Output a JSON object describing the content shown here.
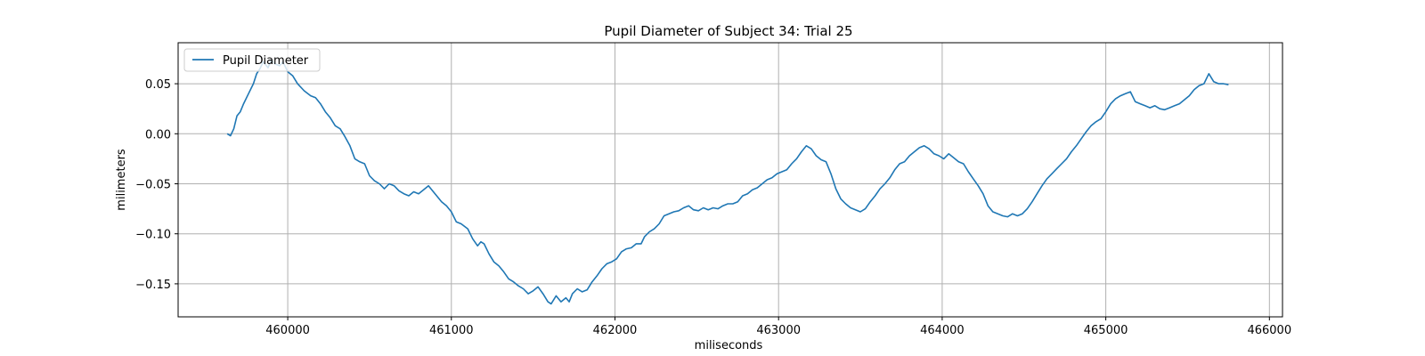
{
  "chart_data": {
    "type": "line",
    "title": "Pupil Diameter of Subject 34: Trial 25",
    "xlabel": "miliseconds",
    "ylabel": "milimeters",
    "xlim": [
      459330,
      466080
    ],
    "ylim": [
      -0.183,
      0.091
    ],
    "xticks": [
      460000,
      461000,
      462000,
      463000,
      464000,
      465000,
      466000
    ],
    "yticks": [
      0.05,
      0.0,
      -0.05,
      -0.1,
      -0.15
    ],
    "ytick_labels": [
      "0.05",
      "0.00",
      "−0.05",
      "−0.10",
      "−0.15"
    ],
    "grid": true,
    "legend_position": "top-left",
    "series": [
      {
        "name": "Pupil Diameter",
        "color": "#1f77b4",
        "points": [
          [
            459630,
            0.0
          ],
          [
            459650,
            -0.002
          ],
          [
            459670,
            0.005
          ],
          [
            459690,
            0.018
          ],
          [
            459710,
            0.022
          ],
          [
            459730,
            0.03
          ],
          [
            459760,
            0.04
          ],
          [
            459790,
            0.05
          ],
          [
            459810,
            0.06
          ],
          [
            459830,
            0.065
          ],
          [
            459850,
            0.072
          ],
          [
            459880,
            0.066
          ],
          [
            459900,
            0.074
          ],
          [
            459920,
            0.07
          ],
          [
            459950,
            0.068
          ],
          [
            459970,
            0.072
          ],
          [
            460000,
            0.062
          ],
          [
            460030,
            0.058
          ],
          [
            460060,
            0.05
          ],
          [
            460100,
            0.043
          ],
          [
            460140,
            0.038
          ],
          [
            460170,
            0.036
          ],
          [
            460200,
            0.03
          ],
          [
            460230,
            0.022
          ],
          [
            460260,
            0.016
          ],
          [
            460290,
            0.008
          ],
          [
            460320,
            0.005
          ],
          [
            460350,
            -0.003
          ],
          [
            460380,
            -0.012
          ],
          [
            460410,
            -0.025
          ],
          [
            460440,
            -0.028
          ],
          [
            460470,
            -0.03
          ],
          [
            460500,
            -0.042
          ],
          [
            460530,
            -0.047
          ],
          [
            460560,
            -0.05
          ],
          [
            460590,
            -0.055
          ],
          [
            460620,
            -0.05
          ],
          [
            460650,
            -0.052
          ],
          [
            460680,
            -0.057
          ],
          [
            460710,
            -0.06
          ],
          [
            460740,
            -0.062
          ],
          [
            460770,
            -0.058
          ],
          [
            460800,
            -0.06
          ],
          [
            460830,
            -0.056
          ],
          [
            460860,
            -0.052
          ],
          [
            460890,
            -0.058
          ],
          [
            460910,
            -0.062
          ],
          [
            460940,
            -0.068
          ],
          [
            460970,
            -0.072
          ],
          [
            461000,
            -0.078
          ],
          [
            461030,
            -0.088
          ],
          [
            461060,
            -0.09
          ],
          [
            461100,
            -0.095
          ],
          [
            461130,
            -0.105
          ],
          [
            461160,
            -0.112
          ],
          [
            461180,
            -0.108
          ],
          [
            461200,
            -0.11
          ],
          [
            461230,
            -0.12
          ],
          [
            461260,
            -0.128
          ],
          [
            461290,
            -0.132
          ],
          [
            461320,
            -0.138
          ],
          [
            461350,
            -0.145
          ],
          [
            461380,
            -0.148
          ],
          [
            461410,
            -0.152
          ],
          [
            461440,
            -0.155
          ],
          [
            461470,
            -0.16
          ],
          [
            461500,
            -0.157
          ],
          [
            461530,
            -0.153
          ],
          [
            461560,
            -0.16
          ],
          [
            461590,
            -0.168
          ],
          [
            461610,
            -0.17
          ],
          [
            461640,
            -0.162
          ],
          [
            461670,
            -0.168
          ],
          [
            461700,
            -0.164
          ],
          [
            461720,
            -0.168
          ],
          [
            461740,
            -0.16
          ],
          [
            461770,
            -0.155
          ],
          [
            461800,
            -0.158
          ],
          [
            461830,
            -0.156
          ],
          [
            461860,
            -0.148
          ],
          [
            461890,
            -0.142
          ],
          [
            461920,
            -0.135
          ],
          [
            461950,
            -0.13
          ],
          [
            461980,
            -0.128
          ],
          [
            462010,
            -0.125
          ],
          [
            462040,
            -0.118
          ],
          [
            462070,
            -0.115
          ],
          [
            462100,
            -0.114
          ],
          [
            462130,
            -0.11
          ],
          [
            462160,
            -0.11
          ],
          [
            462180,
            -0.103
          ],
          [
            462210,
            -0.098
          ],
          [
            462240,
            -0.095
          ],
          [
            462270,
            -0.09
          ],
          [
            462300,
            -0.082
          ],
          [
            462330,
            -0.08
          ],
          [
            462360,
            -0.078
          ],
          [
            462390,
            -0.077
          ],
          [
            462420,
            -0.074
          ],
          [
            462450,
            -0.072
          ],
          [
            462480,
            -0.076
          ],
          [
            462510,
            -0.077
          ],
          [
            462540,
            -0.074
          ],
          [
            462570,
            -0.076
          ],
          [
            462600,
            -0.074
          ],
          [
            462630,
            -0.075
          ],
          [
            462660,
            -0.072
          ],
          [
            462690,
            -0.07
          ],
          [
            462720,
            -0.07
          ],
          [
            462750,
            -0.068
          ],
          [
            462780,
            -0.062
          ],
          [
            462810,
            -0.06
          ],
          [
            462840,
            -0.056
          ],
          [
            462870,
            -0.054
          ],
          [
            462900,
            -0.05
          ],
          [
            462930,
            -0.046
          ],
          [
            462960,
            -0.044
          ],
          [
            462990,
            -0.04
          ],
          [
            463020,
            -0.038
          ],
          [
            463050,
            -0.036
          ],
          [
            463080,
            -0.03
          ],
          [
            463110,
            -0.025
          ],
          [
            463140,
            -0.018
          ],
          [
            463170,
            -0.012
          ],
          [
            463200,
            -0.015
          ],
          [
            463230,
            -0.022
          ],
          [
            463260,
            -0.026
          ],
          [
            463290,
            -0.028
          ],
          [
            463320,
            -0.04
          ],
          [
            463350,
            -0.055
          ],
          [
            463380,
            -0.065
          ],
          [
            463410,
            -0.07
          ],
          [
            463440,
            -0.074
          ],
          [
            463470,
            -0.076
          ],
          [
            463500,
            -0.078
          ],
          [
            463530,
            -0.075
          ],
          [
            463560,
            -0.068
          ],
          [
            463590,
            -0.062
          ],
          [
            463620,
            -0.055
          ],
          [
            463650,
            -0.05
          ],
          [
            463680,
            -0.044
          ],
          [
            463710,
            -0.036
          ],
          [
            463740,
            -0.03
          ],
          [
            463770,
            -0.028
          ],
          [
            463800,
            -0.022
          ],
          [
            463830,
            -0.018
          ],
          [
            463860,
            -0.014
          ],
          [
            463890,
            -0.012
          ],
          [
            463920,
            -0.015
          ],
          [
            463950,
            -0.02
          ],
          [
            463980,
            -0.022
          ],
          [
            464010,
            -0.025
          ],
          [
            464040,
            -0.02
          ],
          [
            464070,
            -0.024
          ],
          [
            464100,
            -0.028
          ],
          [
            464130,
            -0.03
          ],
          [
            464160,
            -0.038
          ],
          [
            464190,
            -0.045
          ],
          [
            464220,
            -0.052
          ],
          [
            464250,
            -0.06
          ],
          [
            464280,
            -0.072
          ],
          [
            464310,
            -0.078
          ],
          [
            464340,
            -0.08
          ],
          [
            464370,
            -0.082
          ],
          [
            464400,
            -0.083
          ],
          [
            464430,
            -0.08
          ],
          [
            464460,
            -0.082
          ],
          [
            464490,
            -0.08
          ],
          [
            464520,
            -0.075
          ],
          [
            464550,
            -0.068
          ],
          [
            464580,
            -0.06
          ],
          [
            464610,
            -0.052
          ],
          [
            464640,
            -0.045
          ],
          [
            464670,
            -0.04
          ],
          [
            464700,
            -0.035
          ],
          [
            464730,
            -0.03
          ],
          [
            464760,
            -0.025
          ],
          [
            464790,
            -0.018
          ],
          [
            464820,
            -0.012
          ],
          [
            464850,
            -0.005
          ],
          [
            464880,
            0.002
          ],
          [
            464910,
            0.008
          ],
          [
            464940,
            0.012
          ],
          [
            464970,
            0.015
          ],
          [
            465000,
            0.022
          ],
          [
            465030,
            0.03
          ],
          [
            465060,
            0.035
          ],
          [
            465090,
            0.038
          ],
          [
            465120,
            0.04
          ],
          [
            465150,
            0.042
          ],
          [
            465180,
            0.032
          ],
          [
            465210,
            0.03
          ],
          [
            465240,
            0.028
          ],
          [
            465270,
            0.026
          ],
          [
            465300,
            0.028
          ],
          [
            465330,
            0.025
          ],
          [
            465360,
            0.024
          ],
          [
            465390,
            0.026
          ],
          [
            465420,
            0.028
          ],
          [
            465450,
            0.03
          ],
          [
            465480,
            0.034
          ],
          [
            465510,
            0.038
          ],
          [
            465540,
            0.044
          ],
          [
            465570,
            0.048
          ],
          [
            465600,
            0.05
          ],
          [
            465630,
            0.06
          ],
          [
            465660,
            0.052
          ],
          [
            465690,
            0.05
          ],
          [
            465720,
            0.05
          ],
          [
            465750,
            0.049
          ]
        ]
      }
    ]
  }
}
